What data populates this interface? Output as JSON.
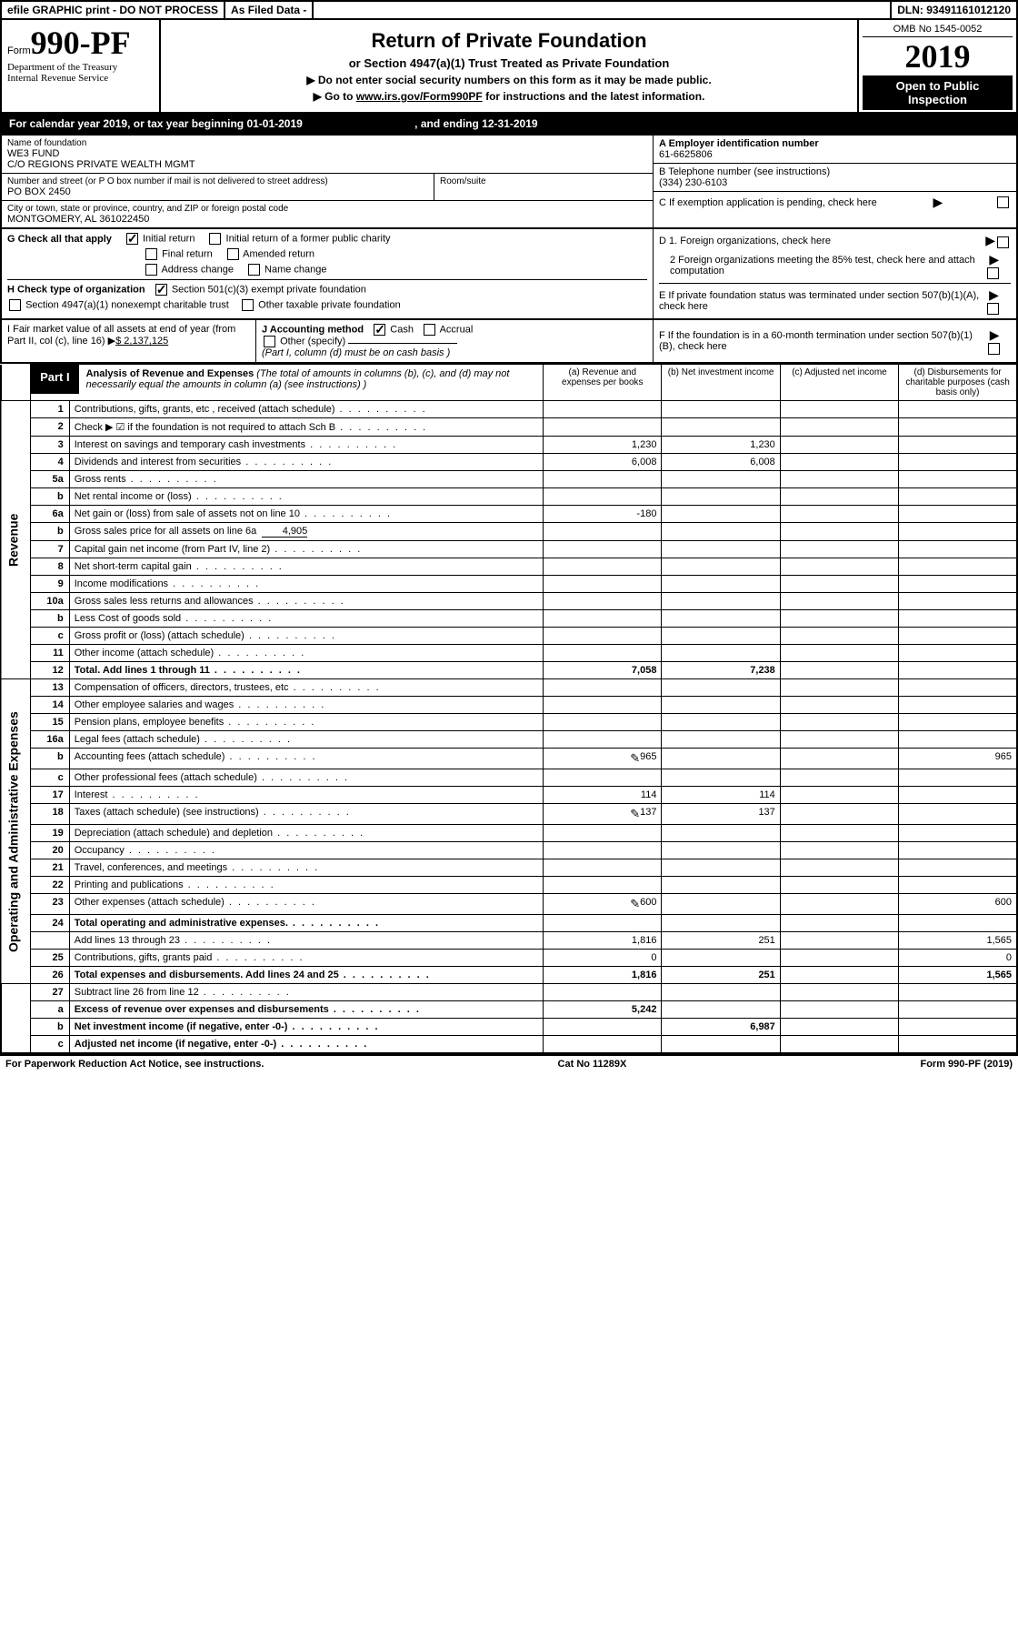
{
  "topbar": {
    "efile": "efile GRAPHIC print - DO NOT PROCESS",
    "asfiled": "As Filed Data -",
    "dln": "DLN: 93491161012120"
  },
  "header": {
    "form_prefix": "Form",
    "form_number": "990-PF",
    "dept1": "Department of the Treasury",
    "dept2": "Internal Revenue Service",
    "title": "Return of Private Foundation",
    "subtitle": "or Section 4947(a)(1) Trust Treated as Private Foundation",
    "hint1": "▶ Do not enter social security numbers on this form as it may be made public.",
    "hint2_pre": "▶ Go to ",
    "hint2_link": "www.irs.gov/Form990PF",
    "hint2_post": " for instructions and the latest information.",
    "omb": "OMB No 1545-0052",
    "year": "2019",
    "badge1": "Open to Public",
    "badge2": "Inspection"
  },
  "calendar": {
    "text_pre": "For calendar year 2019, or tax year beginning 01-01-2019",
    "text_post": ", and ending 12-31-2019"
  },
  "info": {
    "name_label": "Name of foundation",
    "name1": "WE3 FUND",
    "name2": "C/O REGIONS PRIVATE WEALTH MGMT",
    "addr_label": "Number and street (or P O  box number if mail is not delivered to street address)",
    "room_label": "Room/suite",
    "addr": "PO BOX 2450",
    "city_label": "City or town, state or province, country, and ZIP or foreign postal code",
    "city": "MONTGOMERY, AL  361022450",
    "ein_label": "A Employer identification number",
    "ein": "61-6625806",
    "tel_label": "B Telephone number (see instructions)",
    "tel": "(334) 230-6103",
    "c_label": "C If exemption application is pending, check here",
    "d1": "D 1. Foreign organizations, check here",
    "d2": "2 Foreign organizations meeting the 85% test, check here and attach computation",
    "e": "E  If private foundation status was terminated under section 507(b)(1)(A), check here",
    "f": "F  If the foundation is in a 60-month termination under section 507(b)(1)(B), check here"
  },
  "g": {
    "label": "G Check all that apply",
    "initial": "Initial return",
    "initial_former": "Initial return of a former public charity",
    "final": "Final return",
    "amended": "Amended return",
    "addr_change": "Address change",
    "name_change": "Name change"
  },
  "h": {
    "label": "H Check type of organization",
    "sec501": "Section 501(c)(3) exempt private foundation",
    "sec4947": "Section 4947(a)(1) nonexempt charitable trust",
    "other_tax": "Other taxable private foundation"
  },
  "i": {
    "label": "I Fair market value of all assets at end of year (from Part II, col  (c), line 16)",
    "value": "$  2,137,125"
  },
  "j": {
    "label": "J Accounting method",
    "cash": "Cash",
    "accrual": "Accrual",
    "other": "Other (specify)",
    "note": "(Part I, column (d) must be on cash basis )"
  },
  "part1": {
    "badge": "Part I",
    "title": "Analysis of Revenue and Expenses",
    "note": " (The total of amounts in columns (b), (c), and (d) may not necessarily equal the amounts in column (a) (see instructions) )",
    "col_a": "(a) Revenue and expenses per books",
    "col_b": "(b) Net investment income",
    "col_c": "(c) Adjusted net income",
    "col_d": "(d) Disbursements for charitable purposes (cash basis only)"
  },
  "sections": {
    "revenue": "Revenue",
    "expenses": "Operating and Administrative Expenses"
  },
  "rows": [
    {
      "n": "1",
      "d": "Contributions, gifts, grants, etc , received (attach schedule)"
    },
    {
      "n": "2",
      "d": "Check ▶ ☑ if the foundation is not required to attach Sch  B"
    },
    {
      "n": "3",
      "d": "Interest on savings and temporary cash investments",
      "a": "1,230",
      "b": "1,230"
    },
    {
      "n": "4",
      "d": "Dividends and interest from securities",
      "a": "6,008",
      "b": "6,008"
    },
    {
      "n": "5a",
      "d": "Gross rents"
    },
    {
      "n": "b",
      "d": "Net rental income or (loss)"
    },
    {
      "n": "6a",
      "d": "Net gain or (loss) from sale of assets not on line 10",
      "a": "-180"
    },
    {
      "n": "b",
      "d": "Gross sales price for all assets on line 6a",
      "inline": "4,905"
    },
    {
      "n": "7",
      "d": "Capital gain net income (from Part IV, line 2)"
    },
    {
      "n": "8",
      "d": "Net short-term capital gain"
    },
    {
      "n": "9",
      "d": "Income modifications"
    },
    {
      "n": "10a",
      "d": "Gross sales less returns and allowances"
    },
    {
      "n": "b",
      "d": "Less  Cost of goods sold"
    },
    {
      "n": "c",
      "d": "Gross profit or (loss) (attach schedule)"
    },
    {
      "n": "11",
      "d": "Other income (attach schedule)"
    },
    {
      "n": "12",
      "d": "Total. Add lines 1 through 11",
      "a": "7,058",
      "b": "7,238",
      "bold": true
    }
  ],
  "exp_rows": [
    {
      "n": "13",
      "d": "Compensation of officers, directors, trustees, etc"
    },
    {
      "n": "14",
      "d": "Other employee salaries and wages"
    },
    {
      "n": "15",
      "d": "Pension plans, employee benefits"
    },
    {
      "n": "16a",
      "d": "Legal fees (attach schedule)"
    },
    {
      "n": "b",
      "d": "Accounting fees (attach schedule)",
      "icon": true,
      "a": "965",
      "dd": "965"
    },
    {
      "n": "c",
      "d": "Other professional fees (attach schedule)"
    },
    {
      "n": "17",
      "d": "Interest",
      "a": "114",
      "b": "114"
    },
    {
      "n": "18",
      "d": "Taxes (attach schedule) (see instructions)",
      "icon": true,
      "a": "137",
      "b": "137"
    },
    {
      "n": "19",
      "d": "Depreciation (attach schedule) and depletion"
    },
    {
      "n": "20",
      "d": "Occupancy"
    },
    {
      "n": "21",
      "d": "Travel, conferences, and meetings"
    },
    {
      "n": "22",
      "d": "Printing and publications"
    },
    {
      "n": "23",
      "d": "Other expenses (attach schedule)",
      "icon": true,
      "a": "600",
      "dd": "600"
    },
    {
      "n": "24",
      "d": "Total operating and administrative expenses.",
      "bold": true
    },
    {
      "n": "",
      "d": "Add lines 13 through 23",
      "a": "1,816",
      "b": "251",
      "dd": "1,565"
    },
    {
      "n": "25",
      "d": "Contributions, gifts, grants paid",
      "a": "0",
      "dd": "0"
    },
    {
      "n": "26",
      "d": "Total expenses and disbursements. Add lines 24 and 25",
      "a": "1,816",
      "b": "251",
      "dd": "1,565",
      "bold": true
    }
  ],
  "summary_rows": [
    {
      "n": "27",
      "d": "Subtract line 26 from line 12"
    },
    {
      "n": "a",
      "d": "Excess of revenue over expenses and disbursements",
      "a": "5,242",
      "bold": true
    },
    {
      "n": "b",
      "d": "Net investment income (if negative, enter -0-)",
      "b": "6,987",
      "bold": true
    },
    {
      "n": "c",
      "d": "Adjusted net income (if negative, enter -0-)",
      "bold": true
    }
  ],
  "footer": {
    "left": "For Paperwork Reduction Act Notice, see instructions.",
    "mid": "Cat  No  11289X",
    "right": "Form 990-PF (2019)"
  }
}
